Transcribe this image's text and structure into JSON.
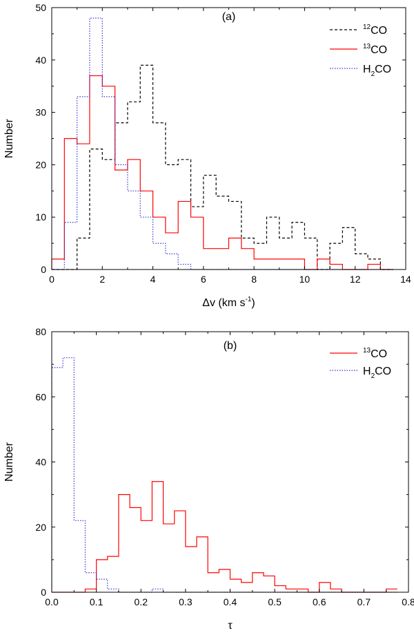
{
  "chart_data": [
    {
      "type": "histogram",
      "panel_label": "(a)",
      "xlabel": "Δv (km s",
      "xlabel_sup": "-1",
      "xlabel_close": ")",
      "ylabel": "Number",
      "xlim": [
        0,
        14
      ],
      "ylim": [
        0,
        50
      ],
      "xticks": [
        0,
        2,
        4,
        6,
        8,
        10,
        12,
        14
      ],
      "yticks": [
        0,
        10,
        20,
        30,
        40,
        50
      ],
      "legend_position": "top-right",
      "bin_edges": [
        0,
        0.5,
        1,
        1.5,
        2,
        2.5,
        3,
        3.5,
        4,
        4.5,
        5,
        5.5,
        6,
        6.5,
        7,
        7.5,
        8,
        8.5,
        9,
        9.5,
        10,
        10.5,
        11,
        11.5,
        12,
        12.5,
        13,
        13.5
      ],
      "series": [
        {
          "name": "12CO",
          "label_pre": "",
          "label_sup": "12",
          "label_main": "CO",
          "label_sub": "",
          "label_post": "",
          "color": "#000000",
          "dash": "4,3",
          "values": [
            0,
            0,
            6,
            23,
            21,
            28,
            32,
            39,
            28,
            20,
            21,
            12,
            18,
            14,
            13,
            6,
            5,
            10,
            6,
            9,
            6,
            0,
            5,
            8,
            3,
            2,
            0
          ]
        },
        {
          "name": "13CO",
          "label_pre": "",
          "label_sup": "13",
          "label_main": "CO",
          "label_sub": "",
          "label_post": "",
          "color": "#ff0000",
          "dash": "",
          "values": [
            2,
            25,
            24,
            37,
            35,
            19,
            21,
            15,
            10,
            7,
            13,
            10,
            4,
            4,
            6,
            4,
            2,
            2,
            2,
            2,
            0,
            2,
            1,
            0,
            0,
            1,
            0
          ]
        },
        {
          "name": "H2CO",
          "label_pre": "H",
          "label_sup": "",
          "label_main": "CO",
          "label_sub": "2",
          "label_post": "",
          "color": "#3333cc",
          "dash": "1.5,2",
          "values": [
            0,
            9,
            33,
            48,
            33,
            20,
            15,
            10,
            5,
            3,
            1,
            0,
            0,
            0,
            0,
            0,
            0,
            0,
            0,
            0,
            0,
            0,
            0,
            0,
            0,
            0,
            0
          ]
        }
      ]
    },
    {
      "type": "histogram",
      "panel_label": "(b)",
      "xlabel": "τ",
      "xlabel_sup": "",
      "xlabel_close": "",
      "ylabel": "Number",
      "xlim": [
        0.0,
        0.8
      ],
      "ylim": [
        0,
        80
      ],
      "xticks": [
        0.0,
        0.1,
        0.2,
        0.3,
        0.4,
        0.5,
        0.6,
        0.7,
        0.8
      ],
      "xtick_labels": [
        "0.0",
        "0.1",
        "0.2",
        "0.3",
        "0.4",
        "0.5",
        "0.6",
        "0.7",
        "0.8"
      ],
      "yticks": [
        0,
        20,
        40,
        60,
        80
      ],
      "legend_position": "top-right",
      "bin_edges": [
        0.0,
        0.025,
        0.05,
        0.075,
        0.1,
        0.125,
        0.15,
        0.175,
        0.2,
        0.225,
        0.25,
        0.275,
        0.3,
        0.325,
        0.35,
        0.375,
        0.4,
        0.425,
        0.45,
        0.475,
        0.5,
        0.525,
        0.55,
        0.575,
        0.6,
        0.625,
        0.65,
        0.675,
        0.7,
        0.725,
        0.75,
        0.775
      ],
      "series": [
        {
          "name": "13CO",
          "label_pre": "",
          "label_sup": "13",
          "label_main": "CO",
          "label_sub": "",
          "label_post": "",
          "color": "#ff0000",
          "dash": "",
          "values": [
            0,
            0,
            0,
            1,
            10,
            11,
            30,
            26,
            22,
            34,
            21,
            25,
            14,
            17,
            6,
            7,
            4,
            3,
            6,
            5,
            2,
            1,
            1,
            0,
            3,
            1,
            0,
            0,
            0,
            0,
            1
          ]
        },
        {
          "name": "H2CO",
          "label_pre": "H",
          "label_sup": "",
          "label_main": "CO",
          "label_sub": "2",
          "label_post": "",
          "color": "#3333cc",
          "dash": "1.5,2",
          "values": [
            69,
            72,
            22,
            6,
            4,
            1,
            0,
            0,
            0,
            1,
            0,
            0,
            0,
            0,
            0,
            0,
            0,
            0,
            0,
            0,
            0,
            0,
            0,
            0,
            0,
            0,
            0,
            0,
            0,
            0,
            0
          ]
        }
      ]
    }
  ]
}
